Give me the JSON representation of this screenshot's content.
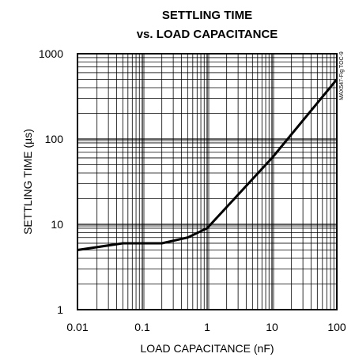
{
  "chart_data": {
    "type": "line",
    "title_line1": "SETTLING TIME",
    "title_line2": "vs. LOAD CAPACITANCE",
    "xlabel": "LOAD CAPACITANCE (nF)",
    "ylabel": "SETTLING TIME (µs)",
    "side_note": "MAX547-Fig TOC-9",
    "x_scale": "log",
    "y_scale": "log",
    "xlim": [
      0.01,
      100
    ],
    "ylim": [
      1,
      1000
    ],
    "x_ticks": [
      0.01,
      0.1,
      1,
      10,
      100
    ],
    "x_tick_labels": [
      "0.01",
      "0.1",
      "1",
      "10",
      "100"
    ],
    "y_ticks": [
      1,
      10,
      100,
      1000
    ],
    "y_tick_labels": [
      "1",
      "10",
      "100",
      "1000"
    ],
    "grid": true,
    "series": [
      {
        "x": [
          0.01,
          0.05,
          0.1,
          0.2,
          0.5,
          1,
          10,
          100
        ],
        "y": [
          5,
          6,
          6,
          6,
          7,
          9,
          60,
          500
        ]
      }
    ]
  }
}
